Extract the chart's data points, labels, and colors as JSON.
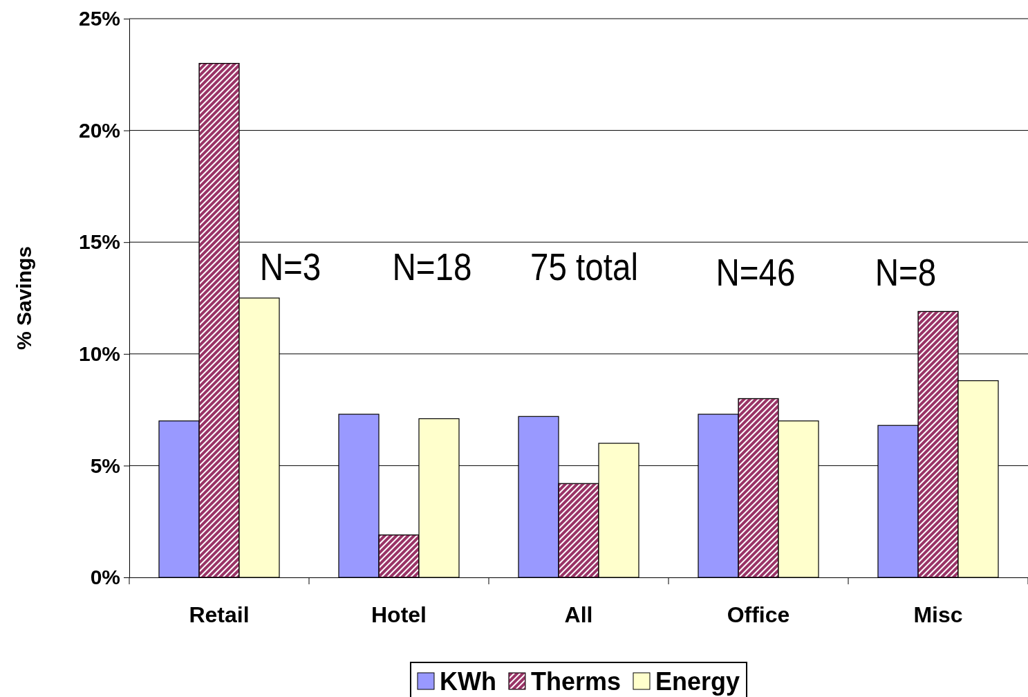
{
  "chart_data": {
    "type": "bar",
    "ylabel": "% Savings",
    "categories": [
      "Retail",
      "Hotel",
      "All",
      "Office",
      "Misc"
    ],
    "series": [
      {
        "name": "KWh",
        "color": "#9999ff",
        "values": [
          7.0,
          7.3,
          7.2,
          7.3,
          6.8
        ]
      },
      {
        "name": "Therms",
        "color": "#993366",
        "values": [
          23.0,
          1.9,
          4.2,
          8.0,
          11.9
        ]
      },
      {
        "name": "Energy",
        "color": "#ffffcc",
        "values": [
          12.5,
          7.1,
          6.0,
          7.0,
          8.8
        ]
      }
    ],
    "ylim": [
      0,
      25
    ],
    "yticks": [
      {
        "value": 0,
        "label": "0%"
      },
      {
        "value": 5,
        "label": "5%"
      },
      {
        "value": 10,
        "label": "10%"
      },
      {
        "value": 15,
        "label": "15%"
      },
      {
        "value": 20,
        "label": "20%"
      },
      {
        "value": 25,
        "label": "25%"
      }
    ],
    "grid": "y",
    "legend": "bottom",
    "annotations": [
      "N=3",
      "N=18",
      "75 total",
      "N=46",
      "N=8"
    ]
  }
}
